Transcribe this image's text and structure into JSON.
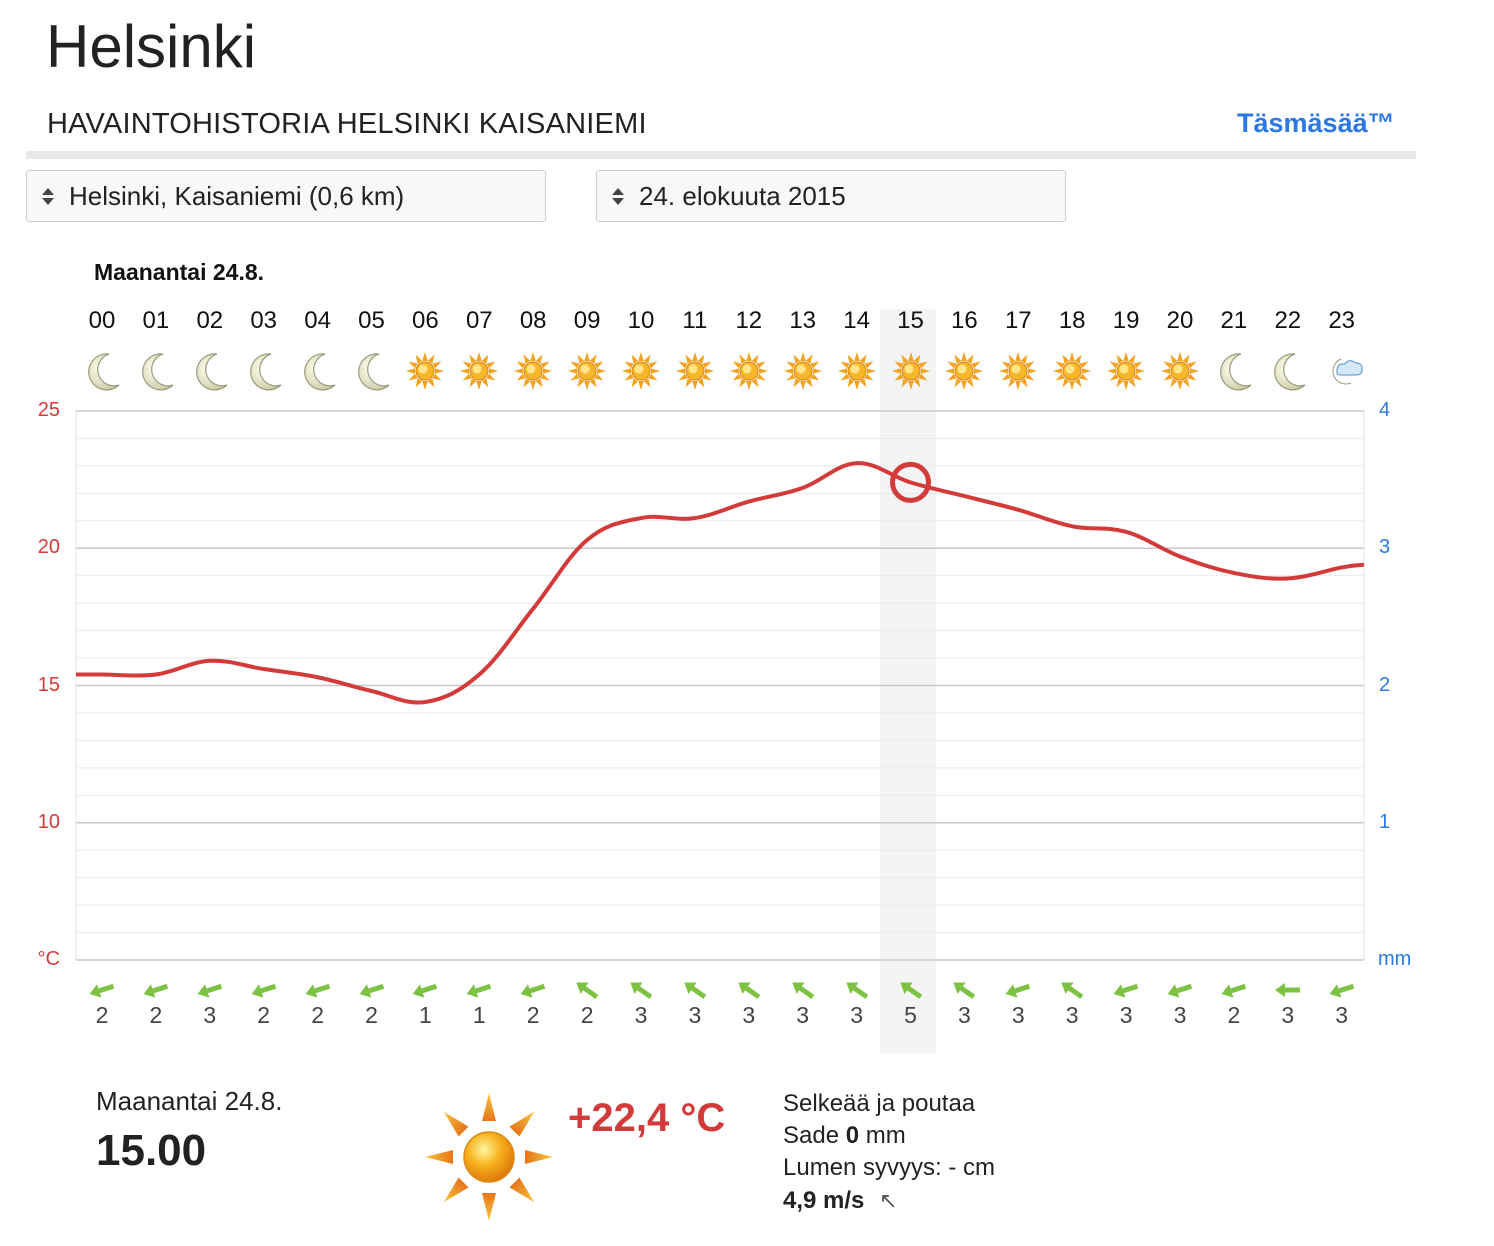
{
  "page": {
    "city": "Helsinki",
    "subtitle": "HAVAINTOHISTORIA HELSINKI KAISANIEMI",
    "brand": "Täsmäsää™"
  },
  "selectors": {
    "location": "Helsinki, Kaisaniemi (0,6 km)",
    "date": "24. elokuuta 2015"
  },
  "chart": {
    "day_label": "Maanantai 24.8.",
    "selected_hour_index": 15,
    "hours": [
      {
        "h": "00",
        "icon": "moon-icon",
        "wind": "2",
        "dir": "left-down",
        "temp": 15.4
      },
      {
        "h": "01",
        "icon": "moon-icon",
        "wind": "2",
        "dir": "left-down",
        "temp": 15.4
      },
      {
        "h": "02",
        "icon": "moon-icon",
        "wind": "3",
        "dir": "left-down",
        "temp": 15.9
      },
      {
        "h": "03",
        "icon": "moon-icon",
        "wind": "2",
        "dir": "left-down",
        "temp": 15.6
      },
      {
        "h": "04",
        "icon": "moon-icon",
        "wind": "2",
        "dir": "left-down",
        "temp": 15.3
      },
      {
        "h": "05",
        "icon": "moon-icon",
        "wind": "2",
        "dir": "left-down",
        "temp": 14.8
      },
      {
        "h": "06",
        "icon": "sun-icon",
        "wind": "1",
        "dir": "left-down",
        "temp": 14.4
      },
      {
        "h": "07",
        "icon": "sun-icon",
        "wind": "1",
        "dir": "left-down",
        "temp": 15.4
      },
      {
        "h": "08",
        "icon": "sun-icon",
        "wind": "2",
        "dir": "left-down",
        "temp": 17.8
      },
      {
        "h": "09",
        "icon": "sun-icon",
        "wind": "2",
        "dir": "up-left",
        "temp": 20.3
      },
      {
        "h": "10",
        "icon": "sun-icon",
        "wind": "3",
        "dir": "up-left",
        "temp": 21.1
      },
      {
        "h": "11",
        "icon": "sun-icon",
        "wind": "3",
        "dir": "up-left",
        "temp": 21.1
      },
      {
        "h": "12",
        "icon": "sun-icon",
        "wind": "3",
        "dir": "up-left",
        "temp": 21.7
      },
      {
        "h": "13",
        "icon": "sun-icon",
        "wind": "3",
        "dir": "up-left",
        "temp": 22.2
      },
      {
        "h": "14",
        "icon": "sun-icon",
        "wind": "3",
        "dir": "up-left",
        "temp": 23.1
      },
      {
        "h": "15",
        "icon": "sun-icon",
        "wind": "5",
        "dir": "up-left",
        "temp": 22.4
      },
      {
        "h": "16",
        "icon": "sun-icon",
        "wind": "3",
        "dir": "up-left",
        "temp": 21.9
      },
      {
        "h": "17",
        "icon": "sun-icon",
        "wind": "3",
        "dir": "left-down",
        "temp": 21.4
      },
      {
        "h": "18",
        "icon": "sun-icon",
        "wind": "3",
        "dir": "up-left",
        "temp": 20.8
      },
      {
        "h": "19",
        "icon": "sun-icon",
        "wind": "3",
        "dir": "left-down",
        "temp": 20.6
      },
      {
        "h": "20",
        "icon": "sun-icon",
        "wind": "3",
        "dir": "left-down",
        "temp": 19.7
      },
      {
        "h": "21",
        "icon": "moon-icon",
        "wind": "2",
        "dir": "left-down",
        "temp": 19.1
      },
      {
        "h": "22",
        "icon": "moon-icon",
        "wind": "3",
        "dir": "left",
        "temp": 18.9
      },
      {
        "h": "23",
        "icon": "cloud-moon-icon",
        "wind": "3",
        "dir": "left-down",
        "temp": 19.3
      }
    ],
    "left_axis": {
      "ticks": [
        "25",
        "20",
        "15",
        "10",
        "°C"
      ],
      "unit": "°C",
      "range": [
        5,
        25
      ]
    },
    "right_axis": {
      "ticks": [
        "4",
        "3",
        "2",
        "1",
        "mm"
      ],
      "unit": "mm",
      "range": [
        0,
        4
      ]
    },
    "colors": {
      "temp_line": "#d33b3b",
      "rain_axis": "#2a78e4",
      "wind_arrow": "#7dc242",
      "highlight": "#f4f4f4"
    }
  },
  "detail": {
    "day": "Maanantai 24.8.",
    "time": "15.00",
    "temperature": "+22,4 °C",
    "condition": "Selkeää ja poutaa",
    "rain_label": "Sade",
    "rain_value": "0",
    "rain_unit": "mm",
    "snow": "Lumen syvyys: - cm",
    "wind": "4,9 m/s",
    "wind_dir_icon": "↖"
  }
}
